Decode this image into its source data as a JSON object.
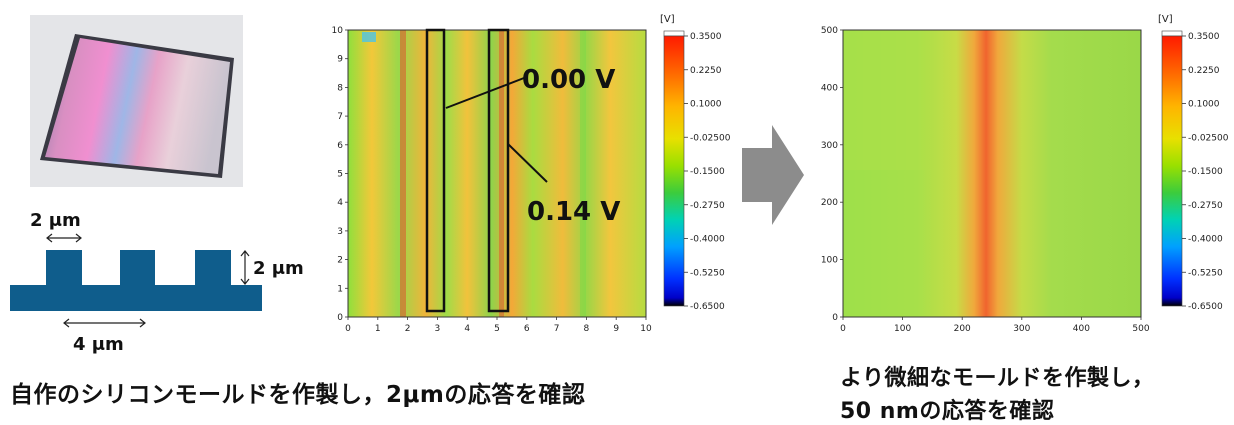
{
  "photo": {
    "description_hidden": ""
  },
  "mold": {
    "width_label": "2 μm",
    "height_label": "2 μm",
    "pitch_label": "4 μm",
    "color": "#0f5d8c"
  },
  "map1": {
    "x_ticks": [
      "0",
      "1",
      "2",
      "3",
      "4",
      "5",
      "6",
      "7",
      "8",
      "9",
      "10"
    ],
    "y_ticks": [
      "0",
      "1",
      "2",
      "3",
      "4",
      "5",
      "6",
      "7",
      "8",
      "9",
      "10"
    ],
    "annotation_a": "0.00 V",
    "annotation_b": "0.14 V"
  },
  "map2": {
    "x_ticks": [
      "0",
      "100",
      "200",
      "300",
      "400",
      "500"
    ],
    "y_ticks": [
      "0",
      "100",
      "200",
      "300",
      "400",
      "500"
    ]
  },
  "colorbar": {
    "unit": "[V]",
    "ticks": [
      "0.3500",
      "0.2250",
      "0.1000",
      "-0.02500",
      "-0.1500",
      "-0.2750",
      "-0.4000",
      "-0.5250",
      "-0.6500"
    ],
    "colors": [
      "#ffffff",
      "#ff0000",
      "#ff7a00",
      "#ffd200",
      "#a8e600",
      "#3ccc3c",
      "#00d2c8",
      "#0090ff",
      "#0010ff",
      "#000000"
    ]
  },
  "arrow_color": "#8c8c8c",
  "captions": {
    "left": "自作のシリコンモールドを作製し，2μmの応答を確認",
    "right_line1": "より微細なモールドを作製し，",
    "right_line2": "50 nmの応答を確認"
  }
}
